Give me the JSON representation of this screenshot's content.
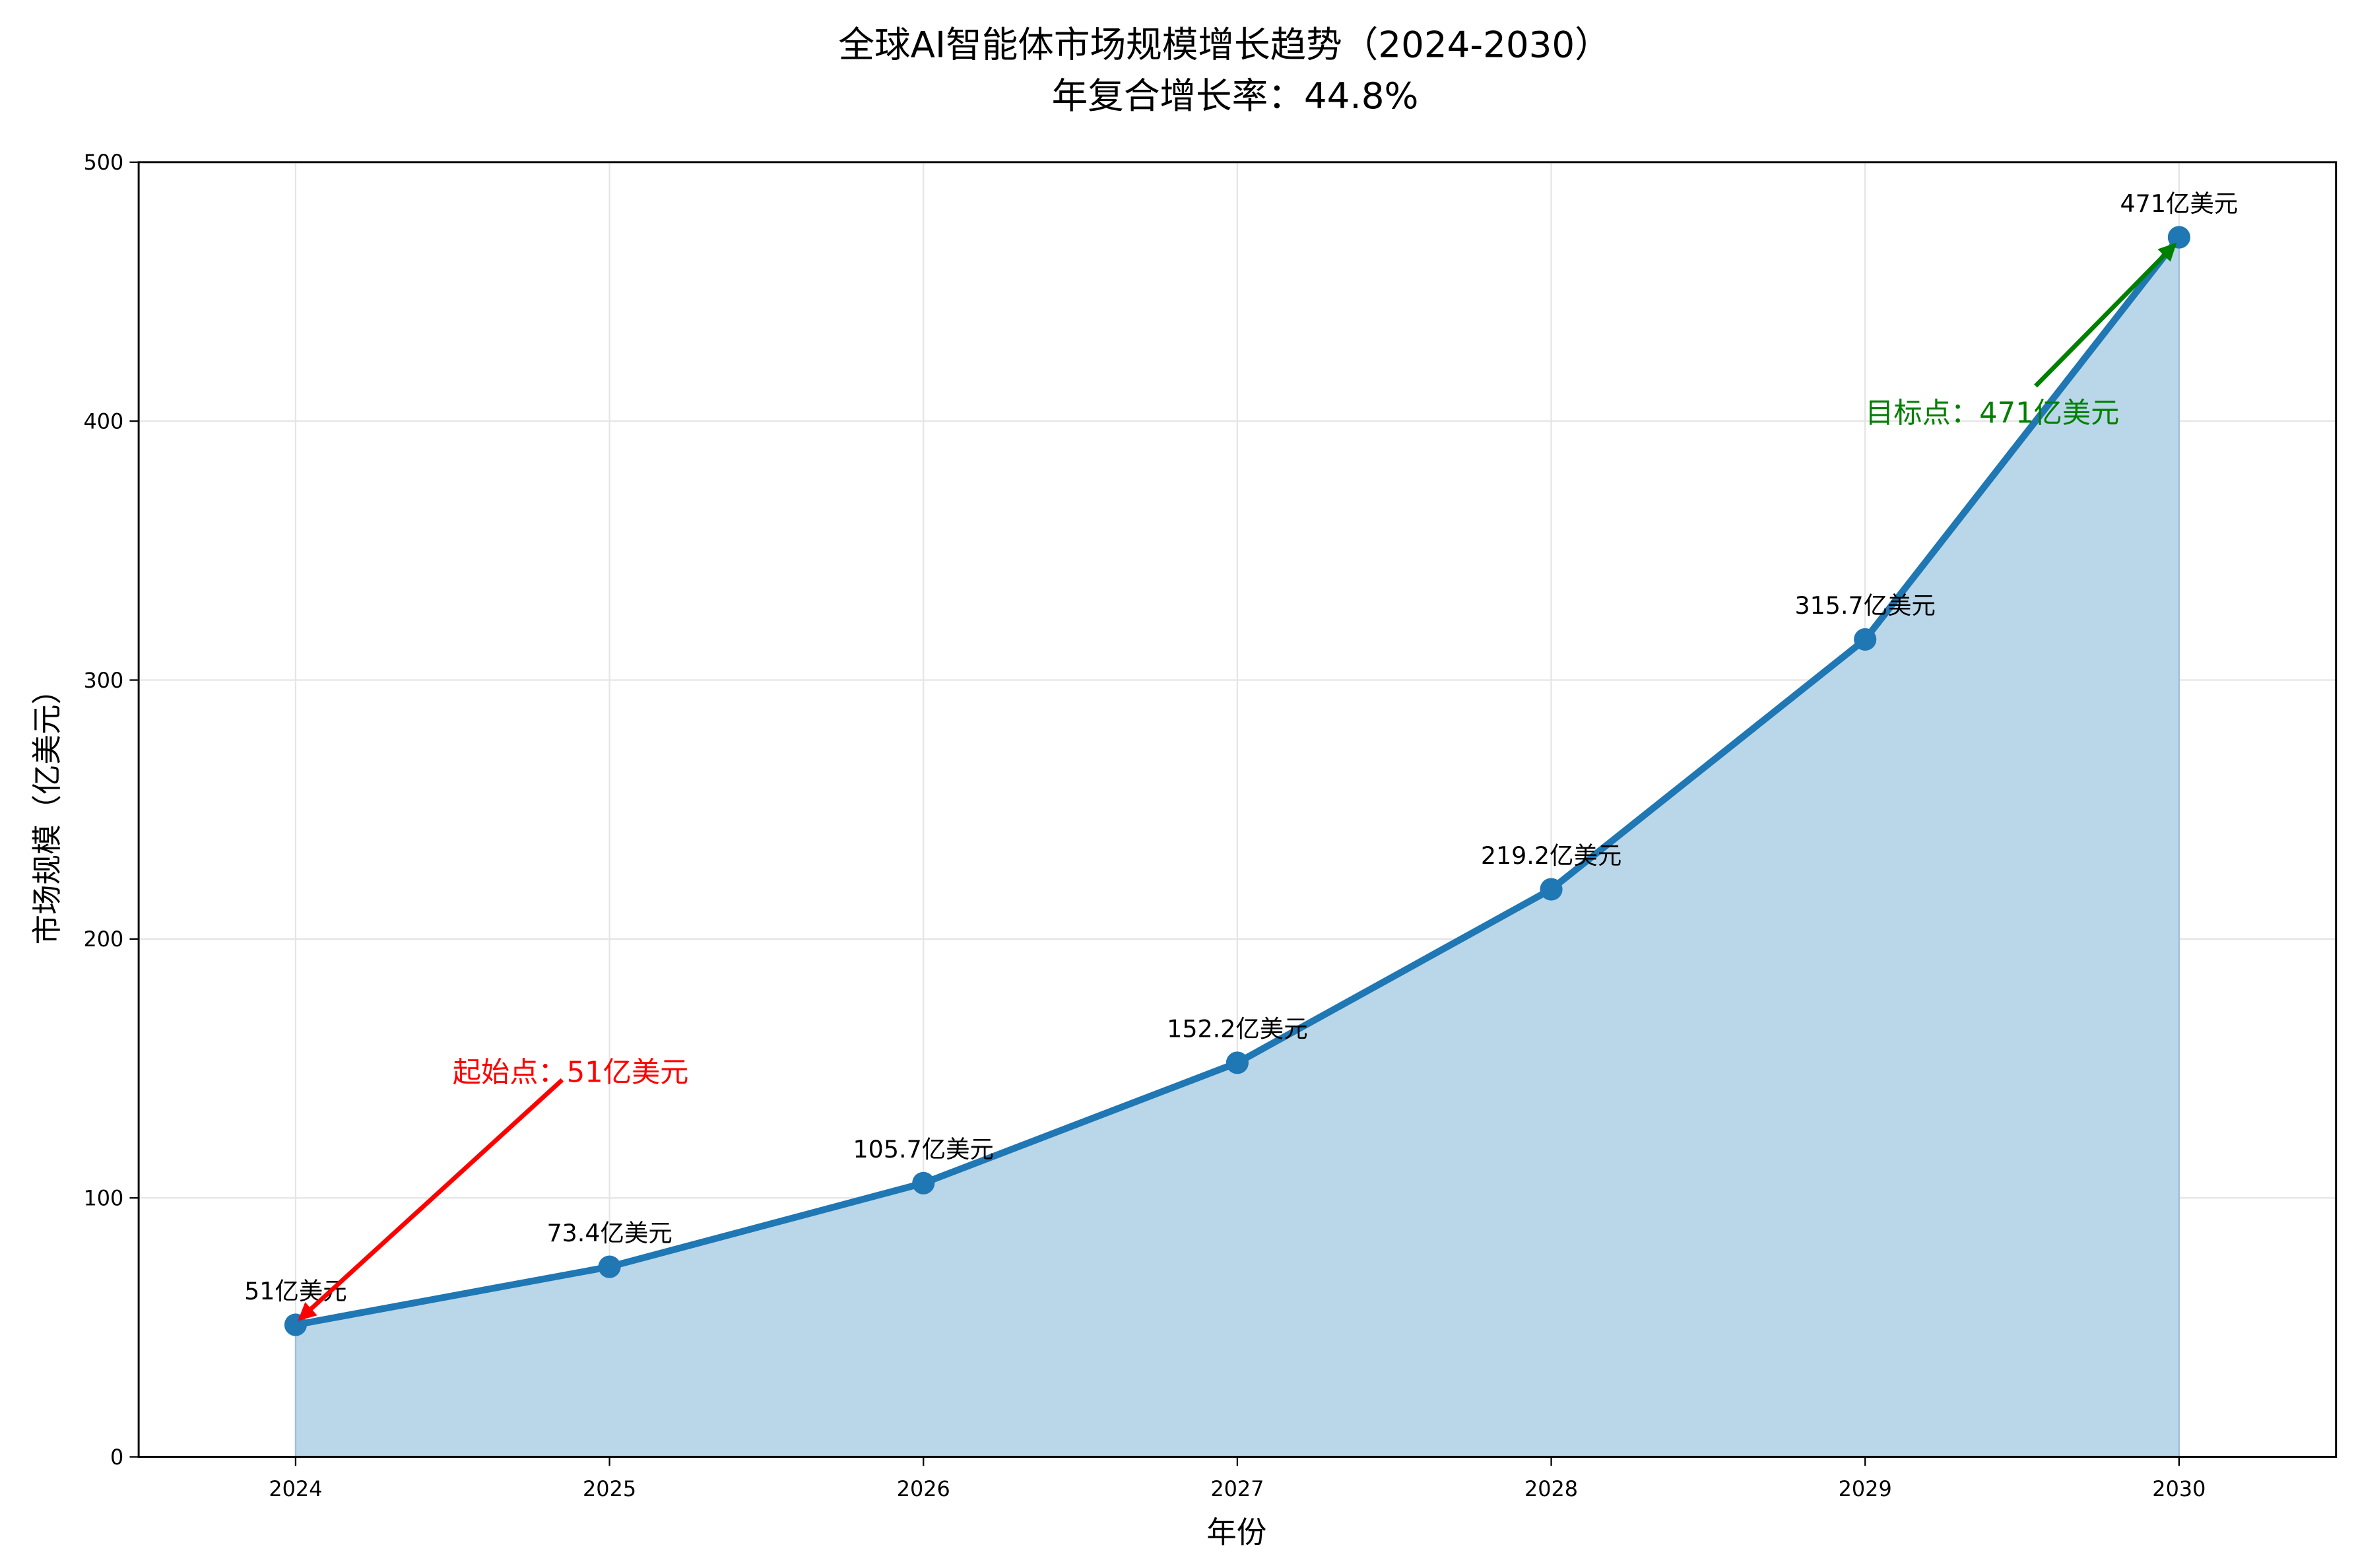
{
  "chart_data": {
    "type": "line",
    "title": "全球AI智能体市场规模增长趋势（2024-2030）",
    "subtitle": "年复合增长率：44.8%",
    "xlabel": "年份",
    "ylabel": "市场规模（亿美元）",
    "x": [
      2024,
      2025,
      2026,
      2027,
      2028,
      2029,
      2030
    ],
    "xlim": [
      2023.5,
      2030.5
    ],
    "ylim": [
      0,
      500
    ],
    "yticks": [
      0,
      100,
      200,
      300,
      400,
      500
    ],
    "grid": true,
    "fill_under": true,
    "series": [
      {
        "values": [
          51,
          73.4,
          105.7,
          152.2,
          219.2,
          315.7,
          471
        ],
        "labels": [
          "51亿美元",
          "73.4亿美元",
          "105.7亿美元",
          "152.2亿美元",
          "219.2亿美元",
          "315.7亿美元",
          "471亿美元"
        ],
        "color": "#1f77b4",
        "fill_color": "#bad6e9"
      }
    ],
    "annotations": [
      {
        "text": "起始点：51亿美元",
        "x": 2024,
        "y": 51,
        "text_x": 2024.5,
        "text_y": 150,
        "color": "#ff0000"
      },
      {
        "text": "目标点：471亿美元",
        "x": 2030,
        "y": 471,
        "text_x": 2029,
        "text_y": 400,
        "color": "#008000"
      }
    ]
  }
}
